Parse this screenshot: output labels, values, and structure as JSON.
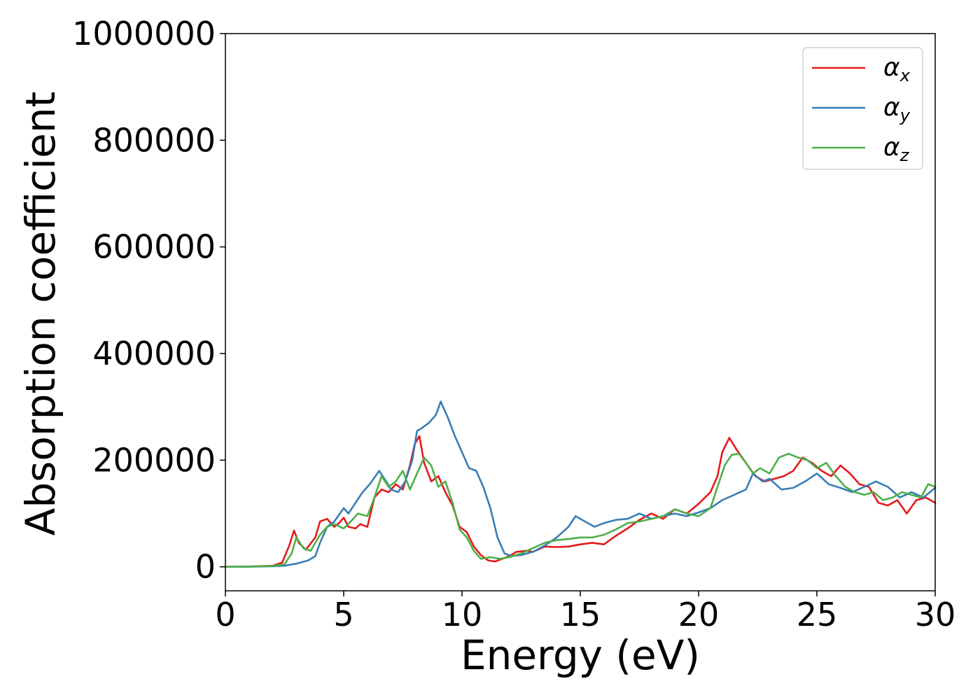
{
  "chart_data": {
    "type": "line",
    "xlabel": "Energy (eV)",
    "ylabel": "Absorption coefficient",
    "xlim": [
      0,
      30
    ],
    "ylim": [
      -45000,
      1000000
    ],
    "x_ticks": [
      0,
      5,
      10,
      15,
      20,
      25,
      30
    ],
    "x_tick_labels": [
      "0",
      "5",
      "10",
      "15",
      "20",
      "25",
      "30"
    ],
    "y_ticks": [
      0,
      200000,
      400000,
      600000,
      800000,
      1000000
    ],
    "y_tick_labels": [
      "0",
      "200000",
      "400000",
      "600000",
      "800000",
      "1000000"
    ],
    "grid": false,
    "legend_position": "top-right",
    "series": [
      {
        "name": "αx",
        "legend_main": "α",
        "legend_sub": "x",
        "color": "#e41a1c",
        "x": [
          0,
          1,
          2,
          2.4,
          2.7,
          2.9,
          3.1,
          3.4,
          3.8,
          4.0,
          4.3,
          4.6,
          4.8,
          5.0,
          5.2,
          5.5,
          5.7,
          6.0,
          6.3,
          6.6,
          6.9,
          7.2,
          7.5,
          7.8,
          8.0,
          8.2,
          8.4,
          8.7,
          9.0,
          9.3,
          9.6,
          9.9,
          10.2,
          10.5,
          10.8,
          11.1,
          11.4,
          11.7,
          12.0,
          12.3,
          12.7,
          13.0,
          13.5,
          14.0,
          14.5,
          15.0,
          15.5,
          16.0,
          16.5,
          17.0,
          17.5,
          18.0,
          18.5,
          19.0,
          19.5,
          20.0,
          20.5,
          20.8,
          21.0,
          21.3,
          21.6,
          22.0,
          22.4,
          22.8,
          23.2,
          23.6,
          24.0,
          24.4,
          24.8,
          25.2,
          25.6,
          26.0,
          26.4,
          26.8,
          27.2,
          27.6,
          28.0,
          28.4,
          28.8,
          29.2,
          29.6,
          30.0
        ],
        "y": [
          0,
          500,
          2000,
          8000,
          40000,
          68000,
          45000,
          32000,
          55000,
          85000,
          90000,
          75000,
          82000,
          92000,
          75000,
          72000,
          80000,
          75000,
          130000,
          145000,
          140000,
          155000,
          145000,
          190000,
          230000,
          245000,
          195000,
          160000,
          170000,
          140000,
          115000,
          75000,
          65000,
          38000,
          22000,
          12000,
          10000,
          15000,
          20000,
          28000,
          30000,
          28000,
          38000,
          37000,
          38000,
          42000,
          45000,
          42000,
          58000,
          72000,
          88000,
          100000,
          90000,
          108000,
          100000,
          118000,
          140000,
          170000,
          215000,
          242000,
          220000,
          195000,
          170000,
          160000,
          165000,
          170000,
          180000,
          205000,
          195000,
          180000,
          170000,
          190000,
          175000,
          155000,
          150000,
          120000,
          115000,
          125000,
          100000,
          125000,
          130000,
          120000
        ]
      },
      {
        "name": "αy",
        "legend_main": "α",
        "legend_sub": "y",
        "color": "#377eb8",
        "x": [
          0,
          1,
          2,
          2.5,
          3.0,
          3.5,
          3.8,
          4.0,
          4.3,
          4.6,
          5.0,
          5.2,
          5.5,
          5.8,
          6.1,
          6.5,
          6.8,
          7.0,
          7.3,
          7.6,
          7.9,
          8.1,
          8.3,
          8.6,
          8.9,
          9.1,
          9.4,
          9.7,
          10.0,
          10.3,
          10.6,
          10.9,
          11.2,
          11.5,
          11.8,
          12.1,
          12.5,
          13.0,
          13.5,
          14.0,
          14.5,
          14.8,
          15.2,
          15.6,
          16.0,
          16.5,
          17.0,
          17.5,
          18.0,
          18.5,
          19.0,
          19.5,
          20.0,
          20.5,
          21.0,
          21.5,
          22.0,
          22.3,
          22.7,
          23.0,
          23.5,
          24.0,
          24.5,
          25.0,
          25.5,
          26.0,
          26.5,
          27.0,
          27.5,
          28.0,
          28.5,
          29.0,
          29.5,
          30.0
        ],
        "y": [
          0,
          200,
          1000,
          2000,
          6000,
          12000,
          20000,
          45000,
          75000,
          85000,
          110000,
          100000,
          120000,
          140000,
          155000,
          180000,
          160000,
          145000,
          140000,
          160000,
          200000,
          255000,
          260000,
          270000,
          285000,
          310000,
          280000,
          245000,
          215000,
          185000,
          180000,
          150000,
          110000,
          55000,
          25000,
          20000,
          22000,
          28000,
          40000,
          55000,
          75000,
          95000,
          85000,
          75000,
          82000,
          88000,
          90000,
          100000,
          90000,
          95000,
          100000,
          95000,
          102000,
          110000,
          125000,
          135000,
          145000,
          175000,
          160000,
          165000,
          145000,
          148000,
          160000,
          175000,
          155000,
          148000,
          140000,
          150000,
          160000,
          150000,
          130000,
          140000,
          130000,
          148000
        ]
      },
      {
        "name": "αz",
        "legend_main": "α",
        "legend_sub": "z",
        "color": "#4daf4a",
        "x": [
          0,
          1,
          2,
          2.5,
          2.8,
          3.0,
          3.3,
          3.6,
          4.0,
          4.3,
          4.6,
          5.0,
          5.3,
          5.6,
          6.0,
          6.3,
          6.6,
          6.9,
          7.2,
          7.5,
          7.8,
          8.1,
          8.4,
          8.7,
          9.0,
          9.3,
          9.6,
          9.9,
          10.2,
          10.5,
          10.8,
          11.2,
          11.6,
          12.0,
          12.5,
          13.0,
          13.5,
          14.0,
          14.5,
          15.0,
          15.5,
          16.0,
          16.5,
          17.0,
          17.5,
          18.0,
          18.5,
          19.0,
          19.5,
          20.0,
          20.5,
          20.8,
          21.1,
          21.4,
          21.7,
          22.0,
          22.3,
          22.6,
          23.0,
          23.4,
          23.8,
          24.2,
          24.6,
          25.0,
          25.4,
          25.8,
          26.2,
          26.6,
          27.0,
          27.4,
          27.8,
          28.2,
          28.6,
          29.0,
          29.4,
          29.7,
          30.0
        ],
        "y": [
          0,
          500,
          1500,
          5000,
          25000,
          55000,
          35000,
          30000,
          60000,
          75000,
          80000,
          72000,
          85000,
          100000,
          95000,
          130000,
          170000,
          150000,
          160000,
          180000,
          145000,
          175000,
          205000,
          190000,
          150000,
          160000,
          120000,
          70000,
          55000,
          30000,
          15000,
          18000,
          15000,
          18000,
          25000,
          35000,
          45000,
          50000,
          52000,
          55000,
          55000,
          60000,
          70000,
          82000,
          85000,
          90000,
          95000,
          108000,
          100000,
          95000,
          110000,
          150000,
          190000,
          210000,
          212000,
          195000,
          175000,
          185000,
          175000,
          205000,
          212000,
          205000,
          200000,
          185000,
          195000,
          170000,
          150000,
          140000,
          135000,
          140000,
          125000,
          130000,
          140000,
          135000,
          130000,
          155000,
          150000
        ]
      }
    ]
  }
}
